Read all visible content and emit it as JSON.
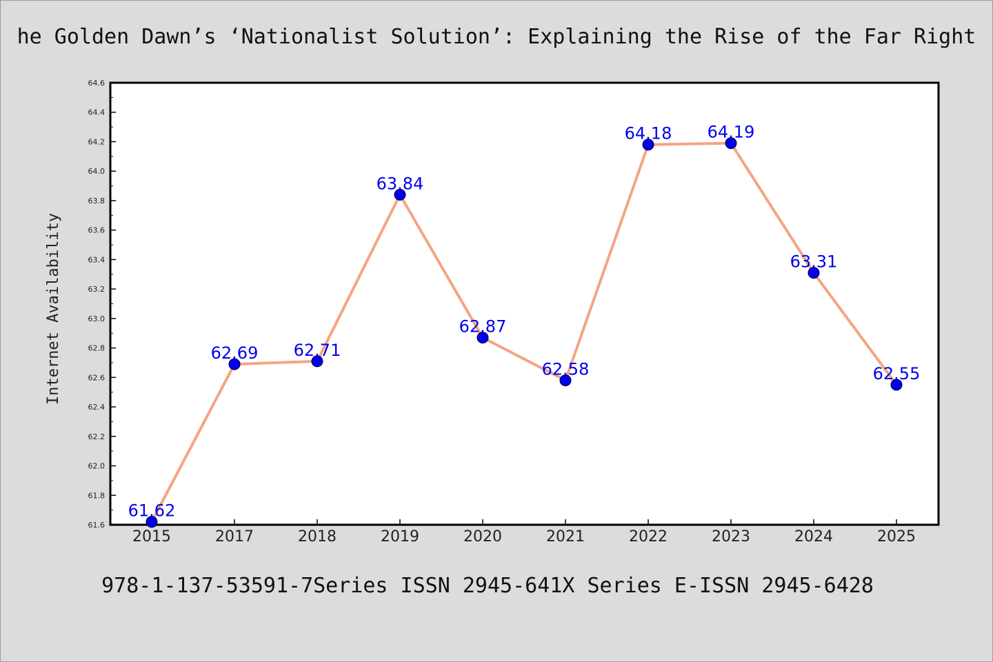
{
  "chart_data": {
    "type": "line",
    "title": "he Golden Dawn’s ‘Nationalist Solution’: Explaining the Rise of the Far Right",
    "xlabel": "",
    "ylabel": "Internet Availability",
    "categories": [
      "2015",
      "2017",
      "2018",
      "2019",
      "2020",
      "2021",
      "2022",
      "2023",
      "2024",
      "2025"
    ],
    "series": [
      {
        "values": [
          61.62,
          62.69,
          62.71,
          63.84,
          62.87,
          62.58,
          64.18,
          64.19,
          63.31,
          62.55
        ]
      }
    ],
    "data_labels": [
      "61.62",
      "62.69",
      "62.71",
      "63.84",
      "62.87",
      "62.58",
      "64.18",
      "64.19",
      "63.31",
      "62.55"
    ],
    "ylim": [
      61.6,
      64.6
    ],
    "yticks": [
      "61.6",
      "61.8",
      "62.0",
      "62.2",
      "62.4",
      "62.6",
      "62.8",
      "63.0",
      "63.2",
      "63.4",
      "63.6",
      "63.8",
      "64.0",
      "64.2",
      "64.4",
      "64.6"
    ],
    "grid": false,
    "legend": "none",
    "colors": {
      "line": "#f4a582",
      "marker": "#0000ee",
      "label": "#0000ee",
      "background": "#dcdcdc",
      "plot_background": "#ffffff"
    }
  },
  "footer": "978-1-137-53591-7Series ISSN 2945-641X Series E-ISSN 2945-6428"
}
